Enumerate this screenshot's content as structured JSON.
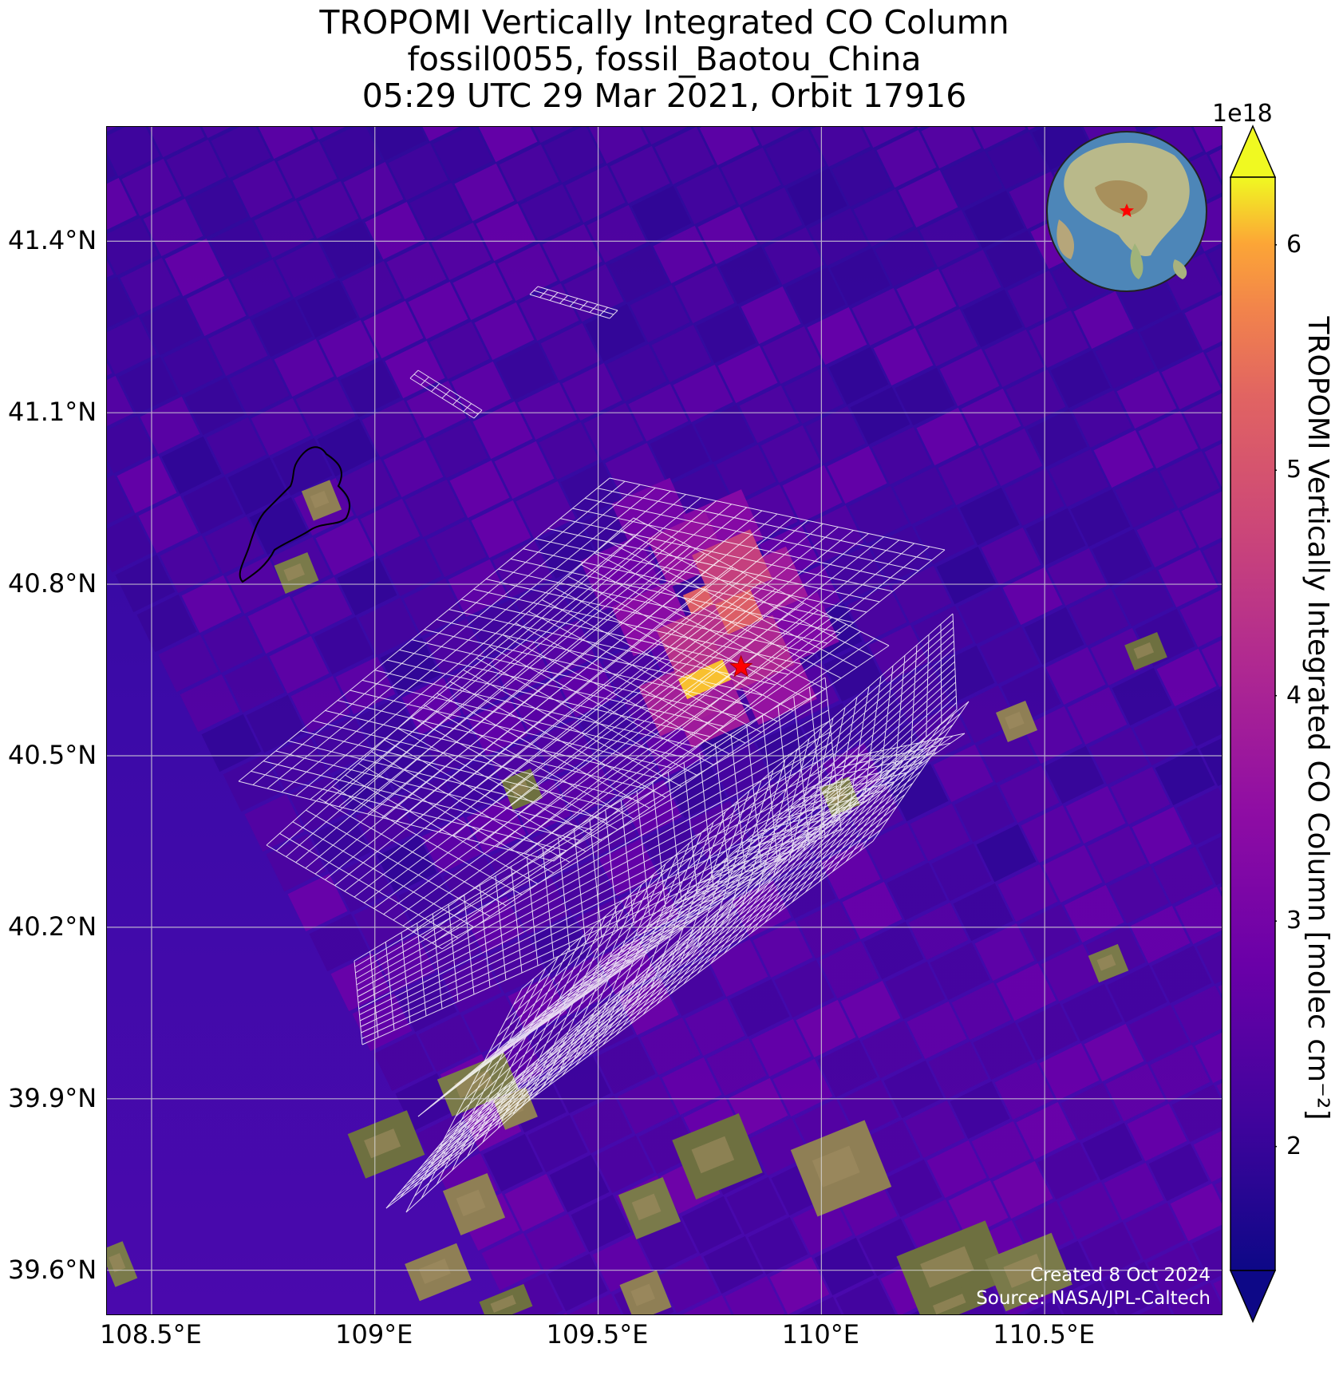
{
  "title": {
    "line1": "TROPOMI Vertically Integrated CO Column",
    "line2": "fossil0055, fossil_Baotou_China",
    "line3": "05:29 UTC 29 Mar 2021, Orbit 17916"
  },
  "map": {
    "lat_range": [
      39.52,
      41.6
    ],
    "lon_range": [
      108.4,
      110.9
    ],
    "lat_ticks": [
      {
        "value": 41.4,
        "label": "41.4°N"
      },
      {
        "value": 41.1,
        "label": "41.1°N"
      },
      {
        "value": 40.8,
        "label": "40.8°N"
      },
      {
        "value": 40.5,
        "label": "40.5°N"
      },
      {
        "value": 40.2,
        "label": "40.2°N"
      },
      {
        "value": 39.9,
        "label": "39.9°N"
      },
      {
        "value": 39.6,
        "label": "39.6°N"
      }
    ],
    "lon_ticks": [
      {
        "value": 108.5,
        "label": "108.5°E"
      },
      {
        "value": 109.0,
        "label": "109°E"
      },
      {
        "value": 109.5,
        "label": "109.5°E"
      },
      {
        "value": 110.0,
        "label": "110°E"
      },
      {
        "value": 110.5,
        "label": "110.5°E"
      }
    ],
    "gridlines": true,
    "source_marker": {
      "lon": 109.82,
      "lat": 40.655,
      "symbol": "star",
      "color": "#ff0000"
    },
    "inset_globe": {
      "position": "top-right",
      "marker": "star",
      "marker_color": "#ff0000"
    }
  },
  "colorbar": {
    "label": "TROPOMI Vertically Integrated CO Column [molec cm⁻²]",
    "exponent": "1e18",
    "min": 1.45,
    "max": 6.3,
    "extend": "both",
    "ticks": [
      {
        "value": 2,
        "label": "2"
      },
      {
        "value": 3,
        "label": "3"
      },
      {
        "value": 4,
        "label": "4"
      },
      {
        "value": 5,
        "label": "5"
      },
      {
        "value": 6,
        "label": "6"
      }
    ],
    "colormap": "plasma"
  },
  "credits": {
    "created": "Created 8 Oct 2024",
    "source": "Source: NASA/JPL-Caltech"
  },
  "chart_data": {
    "type": "heatmap",
    "title": "TROPOMI Vertically Integrated CO Column",
    "xlabel": "",
    "ylabel": "",
    "units": "molec cm⁻² (×1e18)",
    "hotspots": [
      {
        "lon": 109.74,
        "lat": 40.665,
        "value": 6.1
      },
      {
        "lon": 109.78,
        "lat": 40.76,
        "value": 5.2
      },
      {
        "lon": 109.8,
        "lat": 40.83,
        "value": 4.6
      },
      {
        "lon": 109.72,
        "lat": 40.7,
        "value": 4.3
      },
      {
        "lon": 109.85,
        "lat": 40.68,
        "value": 4.1
      }
    ],
    "background_value": 2.3
  }
}
